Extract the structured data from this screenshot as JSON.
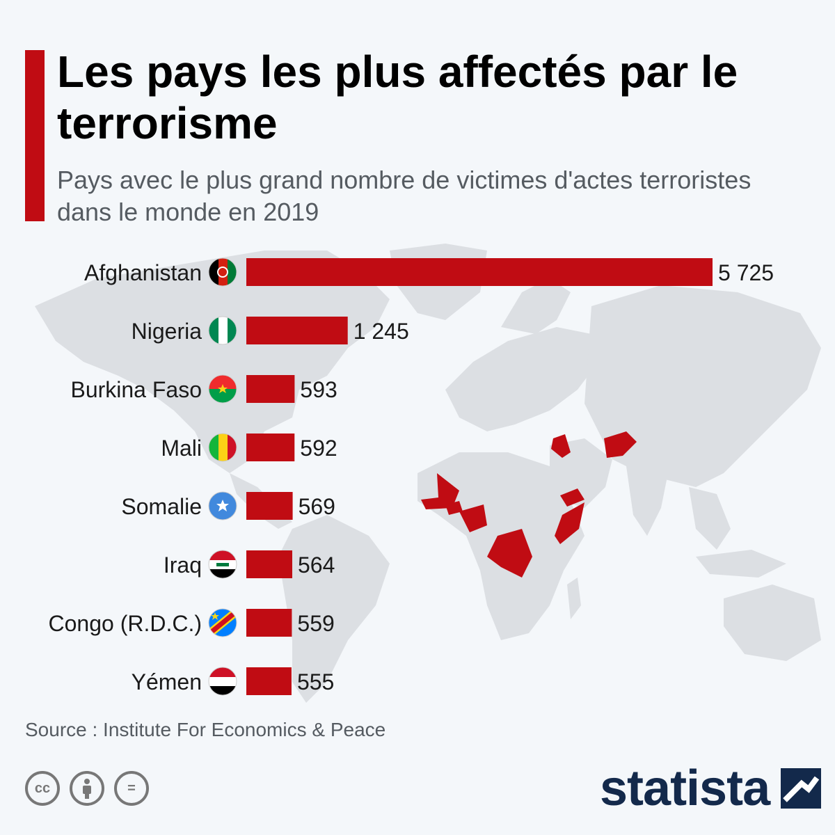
{
  "header": {
    "title": "Les pays les plus affectés par le terrorisme",
    "subtitle": "Pays avec le plus grand nombre de victimes d'actes terroristes dans le monde en 2019"
  },
  "footer": {
    "source": "Source : Institute For Economics & Peace",
    "logo_text": "statista",
    "license_icons": [
      "cc-icon",
      "attribution-icon",
      "no-derivatives-icon"
    ],
    "license_labels": [
      "cc",
      "",
      "="
    ]
  },
  "colors": {
    "accent": "#c00c13",
    "bar": "#c00c13",
    "map": "#dcdfe3",
    "logo": "#13294b",
    "background": "#f4f7fa"
  },
  "chart_data": {
    "type": "bar",
    "orientation": "horizontal",
    "categories": [
      "Afghanistan",
      "Nigeria",
      "Burkina Faso",
      "Mali",
      "Somalie",
      "Iraq",
      "Congo (R.D.C.)",
      "Yémen"
    ],
    "values": [
      5725,
      1245,
      593,
      592,
      569,
      564,
      559,
      555
    ],
    "value_labels": [
      "5 725",
      "1 245",
      "593",
      "592",
      "569",
      "564",
      "559",
      "555"
    ],
    "flags": [
      "afghanistan-flag-icon",
      "nigeria-flag-icon",
      "burkina-faso-flag-icon",
      "mali-flag-icon",
      "somalia-flag-icon",
      "iraq-flag-icon",
      "drc-flag-icon",
      "yemen-flag-icon"
    ],
    "xlim": [
      0,
      5725
    ],
    "grid": false,
    "legend": "none"
  }
}
